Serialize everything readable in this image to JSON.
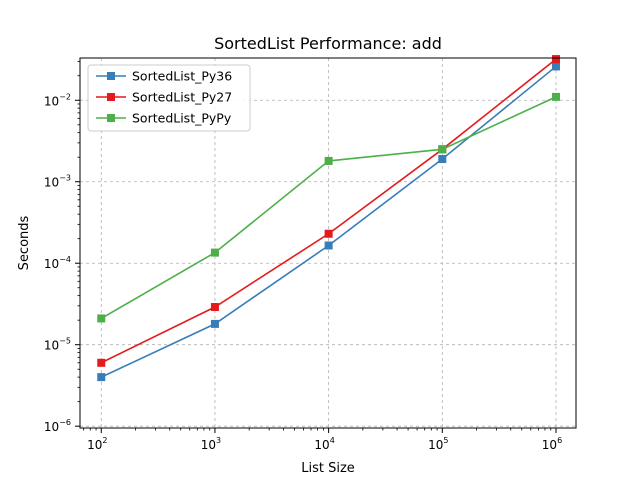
{
  "chart_data": {
    "type": "line",
    "title": "SortedList Performance: add",
    "xlabel": "List Size",
    "ylabel": "Seconds",
    "x_scale": "log",
    "y_scale": "log",
    "xlim": [
      65,
      1500000
    ],
    "ylim": [
      9.5e-07,
      0.033
    ],
    "x": [
      100,
      1000,
      10000,
      100000,
      1000000
    ],
    "x_ticks": [
      {
        "value": 100,
        "base": "10",
        "exp": "2"
      },
      {
        "value": 1000,
        "base": "10",
        "exp": "3"
      },
      {
        "value": 10000,
        "base": "10",
        "exp": "4"
      },
      {
        "value": 100000,
        "base": "10",
        "exp": "5"
      },
      {
        "value": 1000000,
        "base": "10",
        "exp": "6"
      }
    ],
    "y_ticks": [
      {
        "value": 1e-06,
        "base": "10",
        "exp": "−6"
      },
      {
        "value": 1e-05,
        "base": "10",
        "exp": "−5"
      },
      {
        "value": 0.0001,
        "base": "10",
        "exp": "−4"
      },
      {
        "value": 0.001,
        "base": "10",
        "exp": "−3"
      },
      {
        "value": 0.01,
        "base": "10",
        "exp": "−2"
      }
    ],
    "grid": true,
    "legend_position": "upper-left",
    "series": [
      {
        "name": "SortedList_Py36",
        "color": "#377eb8",
        "marker": "square",
        "values": [
          4e-06,
          1.8e-05,
          0.000165,
          0.0019,
          0.026
        ]
      },
      {
        "name": "SortedList_Py27",
        "color": "#e41a1c",
        "marker": "square",
        "values": [
          6e-06,
          2.9e-05,
          0.00023,
          0.0025,
          0.032
        ]
      },
      {
        "name": "SortedList_PyPy",
        "color": "#4daf4a",
        "marker": "square",
        "values": [
          2.1e-05,
          0.000135,
          0.0018,
          0.0025,
          0.011
        ]
      }
    ]
  }
}
